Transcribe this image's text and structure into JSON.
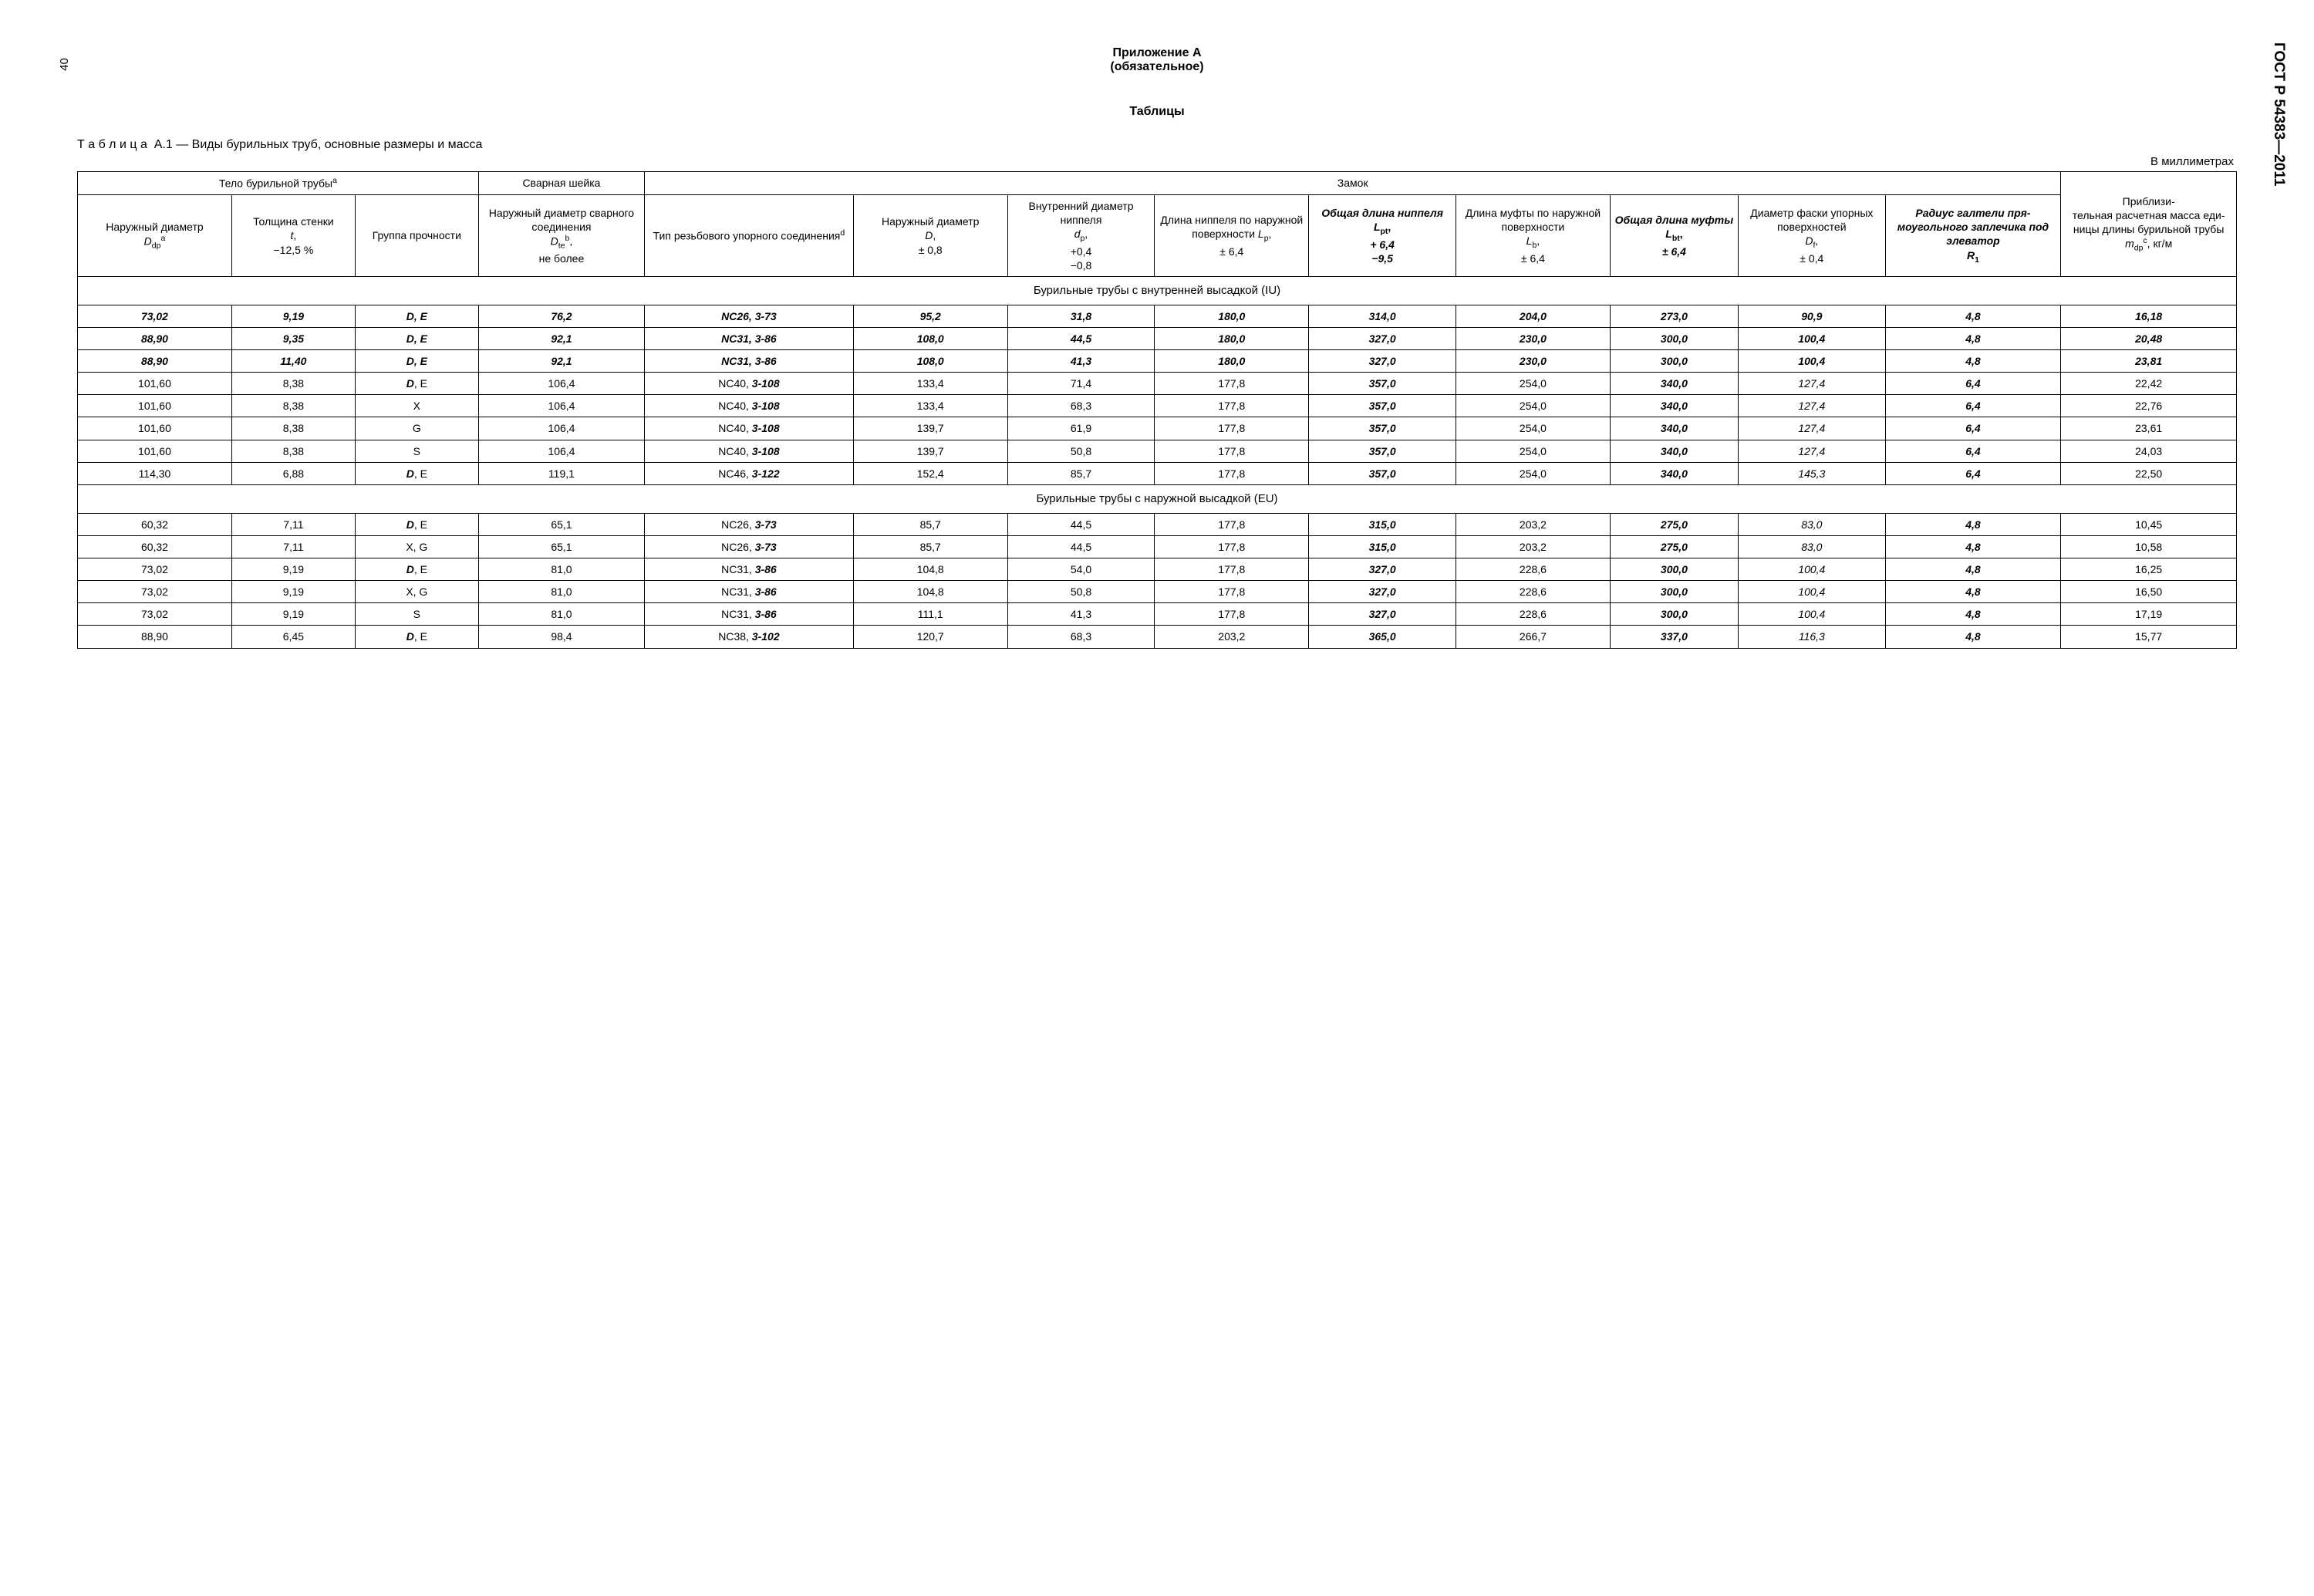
{
  "meta": {
    "page_number": "40",
    "standard_code": "ГОСТ Р 54383—2011"
  },
  "headings": {
    "appendix_line1": "Приложение А",
    "appendix_line2": "(обязательное)",
    "tables_heading": "Таблицы",
    "table_caption_prefix": "Т а б л и ц а",
    "table_caption_num": "А.1",
    "table_caption_rest": " — Виды бурильных труб, основные размеры и масса",
    "units": "В миллиметрах"
  },
  "header": {
    "group_body": "Тело бурильной трубы",
    "group_body_sup": "a",
    "group_weld": "Сварная шейка",
    "group_lock": "Замок",
    "group_mass_l1": "Приблизи-",
    "group_mass_l2": "тельная расчетная масса еди­ницы длины бурильной трубы",
    "mass_sym": "m",
    "mass_sub": "dp",
    "mass_sup": "c",
    "mass_unit": ", кг/м",
    "col_body_l1": "Наружный диаметр",
    "col_body_sym": "D",
    "col_body_sub": "dp",
    "col_body_sup": "a",
    "col_wall_l1": "Толщина стенки",
    "col_wall_sym": "t",
    "col_wall_tol": "−12,5 %",
    "col_grade": "Группа проч­ности",
    "col_weld_l1": "Наружный диаметр сварного соединения",
    "col_weld_sym": "D",
    "col_weld_sub": "te",
    "col_weld_sup": "b",
    "col_weld_tail": "не более",
    "col_thread_l1": "Тип резьбового упорного соединения",
    "col_thread_sup": "d",
    "col_D_l1": "Наружный диаметр",
    "col_D_sym": "D",
    "col_D_tol": "± 0,8",
    "col_dp_l1": "Внутрен­ний диаметр ниппеля",
    "col_dp_sym": "d",
    "col_dp_sub": "p",
    "col_dp_tol1": "+0,4",
    "col_dp_tol2": "−0,8",
    "col_Lp_l1": "Длина ниппеля по наруж­ной по­верхнос­ти ",
    "col_Lp_sym": "L",
    "col_Lp_sub": "p",
    "col_Lp_tol": "± 6,4",
    "col_Lpt_l1": "Общая длина ниппеля",
    "col_Lpt_sym": "L",
    "col_Lpt_sub": "pt",
    "col_Lpt_tol1": "+ 6,4",
    "col_Lpt_tol2": "−9,5",
    "col_Lb_l1": "Длина муфты по наружной поверхно­сти",
    "col_Lb_sym": "L",
    "col_Lb_sub": "b",
    "col_Lb_tol": "± 6,4",
    "col_Lbt_l1": "Общая длина муфты",
    "col_Lbt_sym": "L",
    "col_Lbt_sub": "bt",
    "col_Lbt_tol": "± 6,4",
    "col_Df_l1": "Диаметр фаски упорных поверх­ностей",
    "col_Df_sym": "D",
    "col_Df_sub": "f",
    "col_Df_tol": "± 0,4",
    "col_R1_l1": "Радиус гал­тели пря­моугольно­го заплечи­ка под элеватор",
    "col_R1_sym": "R",
    "col_R1_sub": "1"
  },
  "sections": {
    "iu": "Бурильные трубы с внутренней высадкой (IU)",
    "eu": "Бурильные трубы с наружной высадкой (EU)"
  },
  "rows_iu": [
    {
      "c1": "73,02",
      "c1b": true,
      "c2": "9,19",
      "c2b": true,
      "c3": "D, E",
      "c3b": true,
      "c4": "76,2",
      "c4b": true,
      "c5p": "NC26, ",
      "c5s": "3-73",
      "c5pb": true,
      "c5sb": true,
      "c6": "95,2",
      "c6b": true,
      "c7": "31,8",
      "c7b": true,
      "c8": "180,0",
      "c8b": true,
      "c9": "314,0",
      "c9b": true,
      "c10": "204,0",
      "c10b": true,
      "c11": "273,0",
      "c11b": true,
      "c12": "90,9",
      "c12b": true,
      "c13": "4,8",
      "c13b": true,
      "c14": "16,18",
      "c14b": true
    },
    {
      "c1": "88,90",
      "c1b": true,
      "c2": "9,35",
      "c2b": true,
      "c3": "D, E",
      "c3b": true,
      "c4": "92,1",
      "c4b": true,
      "c5p": "NC31, ",
      "c5s": "3-86",
      "c5pb": true,
      "c5sb": true,
      "c6": "108,0",
      "c6b": true,
      "c7": "44,5",
      "c7b": true,
      "c8": "180,0",
      "c8b": true,
      "c9": "327,0",
      "c9b": true,
      "c10": "230,0",
      "c10b": true,
      "c11": "300,0",
      "c11b": true,
      "c12": "100,4",
      "c12b": true,
      "c13": "4,8",
      "c13b": true,
      "c14": "20,48",
      "c14b": true
    },
    {
      "c1": "88,90",
      "c1b": true,
      "c2": "11,40",
      "c2b": true,
      "c3": "D, E",
      "c3b": true,
      "c4": "92,1",
      "c4b": true,
      "c5p": "NC31, ",
      "c5s": "3-86",
      "c5pb": true,
      "c5sb": true,
      "c6": "108,0",
      "c6b": true,
      "c7": "41,3",
      "c7b": true,
      "c8": "180,0",
      "c8b": true,
      "c9": "327,0",
      "c9b": true,
      "c10": "230,0",
      "c10b": true,
      "c11": "300,0",
      "c11b": true,
      "c12": "100,4",
      "c12b": true,
      "c13": "4,8",
      "c13b": true,
      "c14": "23,81",
      "c14b": true
    },
    {
      "c1": "101,60",
      "c1b": false,
      "c2": "8,38",
      "c2b": false,
      "c3p": "D",
      "c3s": ", E",
      "c3pb": true,
      "c4": "106,4",
      "c4b": false,
      "c5p": "NC40, ",
      "c5s": "3-108",
      "c5pb": false,
      "c5sb": true,
      "c6": "133,4",
      "c6b": false,
      "c7": "71,4",
      "c7b": false,
      "c8": "177,8",
      "c8b": false,
      "c9": "357,0",
      "c9b": true,
      "c10": "254,0",
      "c10b": false,
      "c11": "340,0",
      "c11b": true,
      "c12": "127,4",
      "c12i": true,
      "c13": "6,4",
      "c13b": true,
      "c14": "22,42",
      "c14b": false
    },
    {
      "c1": "101,60",
      "c1b": false,
      "c2": "8,38",
      "c2b": false,
      "c3": "X",
      "c3b": false,
      "c4": "106,4",
      "c4b": false,
      "c5p": "NC40, ",
      "c5s": "3-108",
      "c5pb": false,
      "c5sb": true,
      "c6": "133,4",
      "c6b": false,
      "c7": "68,3",
      "c7b": false,
      "c8": "177,8",
      "c8b": false,
      "c9": "357,0",
      "c9b": true,
      "c10": "254,0",
      "c10b": false,
      "c11": "340,0",
      "c11b": true,
      "c12": "127,4",
      "c12i": true,
      "c13": "6,4",
      "c13b": true,
      "c14": "22,76",
      "c14b": false
    },
    {
      "c1": "101,60",
      "c1b": false,
      "c2": "8,38",
      "c2b": false,
      "c3": "G",
      "c3b": false,
      "c4": "106,4",
      "c4b": false,
      "c5p": "NC40, ",
      "c5s": "3-108",
      "c5pb": false,
      "c5sb": true,
      "c6": "139,7",
      "c6b": false,
      "c7": "61,9",
      "c7b": false,
      "c8": "177,8",
      "c8b": false,
      "c9": "357,0",
      "c9b": true,
      "c10": "254,0",
      "c10b": false,
      "c11": "340,0",
      "c11b": true,
      "c12": "127,4",
      "c12i": true,
      "c13": "6,4",
      "c13b": true,
      "c14": "23,61",
      "c14b": false
    },
    {
      "c1": "101,60",
      "c1b": false,
      "c2": "8,38",
      "c2b": false,
      "c3": "S",
      "c3b": false,
      "c4": "106,4",
      "c4b": false,
      "c5p": "NC40, ",
      "c5s": "3-108",
      "c5pb": false,
      "c5sb": true,
      "c6": "139,7",
      "c6b": false,
      "c7": "50,8",
      "c7b": false,
      "c8": "177,8",
      "c8b": false,
      "c9": "357,0",
      "c9b": true,
      "c10": "254,0",
      "c10b": false,
      "c11": "340,0",
      "c11b": true,
      "c12": "127,4",
      "c12i": true,
      "c13": "6,4",
      "c13b": true,
      "c14": "24,03",
      "c14b": false
    },
    {
      "c1": "114,30",
      "c1b": false,
      "c2": "6,88",
      "c2b": false,
      "c3p": "D",
      "c3s": ", E",
      "c3pb": true,
      "c4": "119,1",
      "c4b": false,
      "c5p": "NC46, ",
      "c5s": "3-122",
      "c5pb": false,
      "c5sb": true,
      "c6": "152,4",
      "c6b": false,
      "c7": "85,7",
      "c7b": false,
      "c8": "177,8",
      "c8b": false,
      "c9": "357,0",
      "c9b": true,
      "c10": "254,0",
      "c10b": false,
      "c11": "340,0",
      "c11b": true,
      "c12": "145,3",
      "c12i": true,
      "c13": "6,4",
      "c13b": true,
      "c14": "22,50",
      "c14b": false
    }
  ],
  "rows_eu": [
    {
      "c1": "60,32",
      "c1b": false,
      "c2": "7,11",
      "c2b": false,
      "c3p": "D",
      "c3s": ", E",
      "c3pb": true,
      "c4": "65,1",
      "c4b": false,
      "c5p": "NC26, ",
      "c5s": "3-73",
      "c5pb": false,
      "c5sb": true,
      "c6": "85,7",
      "c6b": false,
      "c7": "44,5",
      "c7b": false,
      "c8": "177,8",
      "c8b": false,
      "c9": "315,0",
      "c9b": true,
      "c10": "203,2",
      "c10b": false,
      "c11": "275,0",
      "c11b": true,
      "c12": "83,0",
      "c12i": true,
      "c13": "4,8",
      "c13b": true,
      "c14": "10,45",
      "c14b": false
    },
    {
      "c1": "60,32",
      "c1b": false,
      "c2": "7,11",
      "c2b": false,
      "c3": "X, G",
      "c3b": false,
      "c4": "65,1",
      "c4b": false,
      "c5p": "NC26, ",
      "c5s": "3-73",
      "c5pb": false,
      "c5sb": true,
      "c6": "85,7",
      "c6b": false,
      "c7": "44,5",
      "c7b": false,
      "c8": "177,8",
      "c8b": false,
      "c9": "315,0",
      "c9b": true,
      "c10": "203,2",
      "c10b": false,
      "c11": "275,0",
      "c11b": true,
      "c12": "83,0",
      "c12i": true,
      "c13": "4,8",
      "c13b": true,
      "c14": "10,58",
      "c14b": false
    },
    {
      "c1": "73,02",
      "c1b": false,
      "c2": "9,19",
      "c2b": false,
      "c3p": "D",
      "c3s": ", E",
      "c3pb": true,
      "c4": "81,0",
      "c4b": false,
      "c5p": "NC31, ",
      "c5s": "3-86",
      "c5pb": false,
      "c5sb": true,
      "c6": "104,8",
      "c6b": false,
      "c7": "54,0",
      "c7b": false,
      "c8": "177,8",
      "c8b": false,
      "c9": "327,0",
      "c9b": true,
      "c10": "228,6",
      "c10b": false,
      "c11": "300,0",
      "c11b": true,
      "c12": "100,4",
      "c12i": true,
      "c13": "4,8",
      "c13b": true,
      "c14": "16,25",
      "c14b": false
    },
    {
      "c1": "73,02",
      "c1b": false,
      "c2": "9,19",
      "c2b": false,
      "c3": "X, G",
      "c3b": false,
      "c4": "81,0",
      "c4b": false,
      "c5p": "NC31, ",
      "c5s": "3-86",
      "c5pb": false,
      "c5sb": true,
      "c6": "104,8",
      "c6b": false,
      "c7": "50,8",
      "c7b": false,
      "c8": "177,8",
      "c8b": false,
      "c9": "327,0",
      "c9b": true,
      "c10": "228,6",
      "c10b": false,
      "c11": "300,0",
      "c11b": true,
      "c12": "100,4",
      "c12i": true,
      "c13": "4,8",
      "c13b": true,
      "c14": "16,50",
      "c14b": false
    },
    {
      "c1": "73,02",
      "c1b": false,
      "c2": "9,19",
      "c2b": false,
      "c3": "S",
      "c3b": false,
      "c4": "81,0",
      "c4b": false,
      "c5p": "NC31, ",
      "c5s": "3-86",
      "c5pb": false,
      "c5sb": true,
      "c6": "111,1",
      "c6b": false,
      "c7": "41,3",
      "c7b": false,
      "c8": "177,8",
      "c8b": false,
      "c9": "327,0",
      "c9b": true,
      "c10": "228,6",
      "c10b": false,
      "c11": "300,0",
      "c11b": true,
      "c12": "100,4",
      "c12i": true,
      "c13": "4,8",
      "c13b": true,
      "c14": "17,19",
      "c14b": false
    },
    {
      "c1": "88,90",
      "c1b": false,
      "c2": "6,45",
      "c2b": false,
      "c3p": "D",
      "c3s": ", E",
      "c3pb": true,
      "c4": "98,4",
      "c4b": false,
      "c5p": "NC38, ",
      "c5s": "3-102",
      "c5pb": false,
      "c5sb": true,
      "c6": "120,7",
      "c6b": false,
      "c7": "68,3",
      "c7b": false,
      "c8": "203,2",
      "c8b": false,
      "c9": "365,0",
      "c9b": true,
      "c10": "266,7",
      "c10b": false,
      "c11": "337,0",
      "c11b": true,
      "c12": "116,3",
      "c12i": true,
      "c13": "4,8",
      "c13b": true,
      "c14": "15,77",
      "c14b": false
    }
  ]
}
